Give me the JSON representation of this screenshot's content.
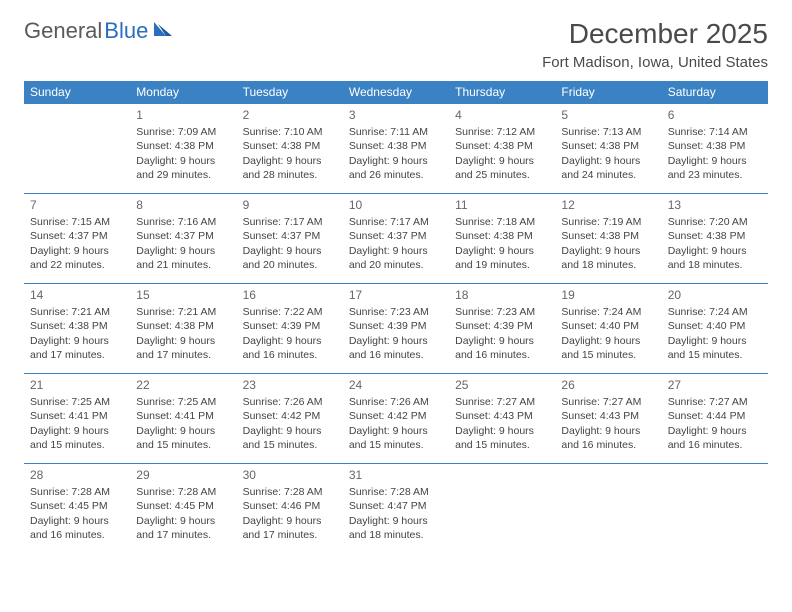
{
  "brand": {
    "part1": "General",
    "part2": "Blue"
  },
  "title": "December 2025",
  "location": "Fort Madison, Iowa, United States",
  "colors": {
    "header_bg": "#3b82c4",
    "header_text": "#ffffff",
    "border": "#3b82c4",
    "brand_gray": "#5a5a5a",
    "brand_blue": "#2a6ebc",
    "text": "#444444",
    "background": "#ffffff"
  },
  "days_of_week": [
    "Sunday",
    "Monday",
    "Tuesday",
    "Wednesday",
    "Thursday",
    "Friday",
    "Saturday"
  ],
  "weeks": [
    [
      null,
      {
        "n": "1",
        "sr": "7:09 AM",
        "ss": "4:38 PM",
        "dl": "9 hours and 29 minutes."
      },
      {
        "n": "2",
        "sr": "7:10 AM",
        "ss": "4:38 PM",
        "dl": "9 hours and 28 minutes."
      },
      {
        "n": "3",
        "sr": "7:11 AM",
        "ss": "4:38 PM",
        "dl": "9 hours and 26 minutes."
      },
      {
        "n": "4",
        "sr": "7:12 AM",
        "ss": "4:38 PM",
        "dl": "9 hours and 25 minutes."
      },
      {
        "n": "5",
        "sr": "7:13 AM",
        "ss": "4:38 PM",
        "dl": "9 hours and 24 minutes."
      },
      {
        "n": "6",
        "sr": "7:14 AM",
        "ss": "4:38 PM",
        "dl": "9 hours and 23 minutes."
      }
    ],
    [
      {
        "n": "7",
        "sr": "7:15 AM",
        "ss": "4:37 PM",
        "dl": "9 hours and 22 minutes."
      },
      {
        "n": "8",
        "sr": "7:16 AM",
        "ss": "4:37 PM",
        "dl": "9 hours and 21 minutes."
      },
      {
        "n": "9",
        "sr": "7:17 AM",
        "ss": "4:37 PM",
        "dl": "9 hours and 20 minutes."
      },
      {
        "n": "10",
        "sr": "7:17 AM",
        "ss": "4:37 PM",
        "dl": "9 hours and 20 minutes."
      },
      {
        "n": "11",
        "sr": "7:18 AM",
        "ss": "4:38 PM",
        "dl": "9 hours and 19 minutes."
      },
      {
        "n": "12",
        "sr": "7:19 AM",
        "ss": "4:38 PM",
        "dl": "9 hours and 18 minutes."
      },
      {
        "n": "13",
        "sr": "7:20 AM",
        "ss": "4:38 PM",
        "dl": "9 hours and 18 minutes."
      }
    ],
    [
      {
        "n": "14",
        "sr": "7:21 AM",
        "ss": "4:38 PM",
        "dl": "9 hours and 17 minutes."
      },
      {
        "n": "15",
        "sr": "7:21 AM",
        "ss": "4:38 PM",
        "dl": "9 hours and 17 minutes."
      },
      {
        "n": "16",
        "sr": "7:22 AM",
        "ss": "4:39 PM",
        "dl": "9 hours and 16 minutes."
      },
      {
        "n": "17",
        "sr": "7:23 AM",
        "ss": "4:39 PM",
        "dl": "9 hours and 16 minutes."
      },
      {
        "n": "18",
        "sr": "7:23 AM",
        "ss": "4:39 PM",
        "dl": "9 hours and 16 minutes."
      },
      {
        "n": "19",
        "sr": "7:24 AM",
        "ss": "4:40 PM",
        "dl": "9 hours and 15 minutes."
      },
      {
        "n": "20",
        "sr": "7:24 AM",
        "ss": "4:40 PM",
        "dl": "9 hours and 15 minutes."
      }
    ],
    [
      {
        "n": "21",
        "sr": "7:25 AM",
        "ss": "4:41 PM",
        "dl": "9 hours and 15 minutes."
      },
      {
        "n": "22",
        "sr": "7:25 AM",
        "ss": "4:41 PM",
        "dl": "9 hours and 15 minutes."
      },
      {
        "n": "23",
        "sr": "7:26 AM",
        "ss": "4:42 PM",
        "dl": "9 hours and 15 minutes."
      },
      {
        "n": "24",
        "sr": "7:26 AM",
        "ss": "4:42 PM",
        "dl": "9 hours and 15 minutes."
      },
      {
        "n": "25",
        "sr": "7:27 AM",
        "ss": "4:43 PM",
        "dl": "9 hours and 15 minutes."
      },
      {
        "n": "26",
        "sr": "7:27 AM",
        "ss": "4:43 PM",
        "dl": "9 hours and 16 minutes."
      },
      {
        "n": "27",
        "sr": "7:27 AM",
        "ss": "4:44 PM",
        "dl": "9 hours and 16 minutes."
      }
    ],
    [
      {
        "n": "28",
        "sr": "7:28 AM",
        "ss": "4:45 PM",
        "dl": "9 hours and 16 minutes."
      },
      {
        "n": "29",
        "sr": "7:28 AM",
        "ss": "4:45 PM",
        "dl": "9 hours and 17 minutes."
      },
      {
        "n": "30",
        "sr": "7:28 AM",
        "ss": "4:46 PM",
        "dl": "9 hours and 17 minutes."
      },
      {
        "n": "31",
        "sr": "7:28 AM",
        "ss": "4:47 PM",
        "dl": "9 hours and 18 minutes."
      },
      null,
      null,
      null
    ]
  ],
  "labels": {
    "sunrise": "Sunrise: ",
    "sunset": "Sunset: ",
    "daylight": "Daylight: "
  }
}
